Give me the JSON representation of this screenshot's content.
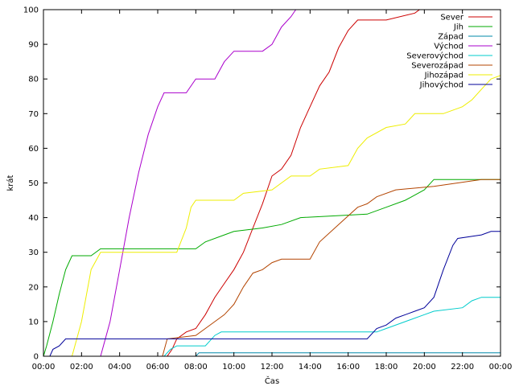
{
  "chart_data": {
    "type": "line",
    "xlabel": "Čas",
    "ylabel": "krát",
    "xlim": [
      "00:00",
      "24:00"
    ],
    "ylim": [
      0,
      100
    ],
    "x_tick_labels": [
      "00:00",
      "02:00",
      "04:00",
      "06:00",
      "08:00",
      "10:00",
      "12:00",
      "14:00",
      "16:00",
      "18:00",
      "20:00",
      "22:00",
      "00:00"
    ],
    "y_tick_labels": [
      "0",
      "10",
      "20",
      "30",
      "40",
      "50",
      "60",
      "70",
      "80",
      "90",
      "100"
    ],
    "legend_position": "top-right",
    "grid": false,
    "series": [
      {
        "name": "Sever",
        "color": "#cc0000",
        "points": [
          [
            "00:00",
            0
          ],
          [
            "06:30",
            0
          ],
          [
            "06:45",
            2
          ],
          [
            "07:00",
            5
          ],
          [
            "07:30",
            7
          ],
          [
            "08:00",
            8
          ],
          [
            "08:30",
            12
          ],
          [
            "09:00",
            17
          ],
          [
            "09:30",
            21
          ],
          [
            "10:00",
            25
          ],
          [
            "10:30",
            30
          ],
          [
            "11:00",
            37
          ],
          [
            "11:30",
            44
          ],
          [
            "12:00",
            52
          ],
          [
            "12:30",
            54
          ],
          [
            "13:00",
            58
          ],
          [
            "13:30",
            66
          ],
          [
            "14:00",
            72
          ],
          [
            "14:30",
            78
          ],
          [
            "15:00",
            82
          ],
          [
            "15:30",
            89
          ],
          [
            "16:00",
            94
          ],
          [
            "16:30",
            97
          ],
          [
            "18:00",
            97
          ],
          [
            "19:30",
            99
          ],
          [
            "19:45",
            100
          ]
        ]
      },
      {
        "name": "Jih",
        "color": "#00aa00",
        "points": [
          [
            "00:00",
            0
          ],
          [
            "00:10",
            3
          ],
          [
            "00:30",
            10
          ],
          [
            "00:50",
            18
          ],
          [
            "01:10",
            25
          ],
          [
            "01:30",
            29
          ],
          [
            "02:30",
            29
          ],
          [
            "03:00",
            31
          ],
          [
            "08:00",
            31
          ],
          [
            "08:30",
            33
          ],
          [
            "09:30",
            35
          ],
          [
            "10:00",
            36
          ],
          [
            "11:30",
            37
          ],
          [
            "12:30",
            38
          ],
          [
            "13:30",
            40
          ],
          [
            "17:00",
            41
          ],
          [
            "18:00",
            43
          ],
          [
            "19:00",
            45
          ],
          [
            "20:00",
            48
          ],
          [
            "20:30",
            51
          ],
          [
            "24:00",
            51
          ]
        ]
      },
      {
        "name": "Západ",
        "color": "#0088aa",
        "points": [
          [
            "00:00",
            0
          ],
          [
            "08:00",
            0
          ],
          [
            "08:10",
            1
          ],
          [
            "24:00",
            1
          ]
        ]
      },
      {
        "name": "Východ",
        "color": "#aa00cc",
        "points": [
          [
            "00:00",
            0
          ],
          [
            "03:00",
            0
          ],
          [
            "03:30",
            10
          ],
          [
            "04:00",
            25
          ],
          [
            "04:30",
            40
          ],
          [
            "05:00",
            53
          ],
          [
            "05:30",
            64
          ],
          [
            "06:00",
            72
          ],
          [
            "06:20",
            76
          ],
          [
            "07:30",
            76
          ],
          [
            "08:00",
            80
          ],
          [
            "09:00",
            80
          ],
          [
            "09:30",
            85
          ],
          [
            "10:00",
            88
          ],
          [
            "11:30",
            88
          ],
          [
            "12:00",
            90
          ],
          [
            "12:30",
            95
          ],
          [
            "13:00",
            98
          ],
          [
            "13:15",
            100
          ]
        ]
      },
      {
        "name": "Severovýchod",
        "color": "#00cccc",
        "points": [
          [
            "00:00",
            0
          ],
          [
            "06:20",
            0
          ],
          [
            "06:40",
            2
          ],
          [
            "07:00",
            3
          ],
          [
            "08:30",
            3
          ],
          [
            "09:00",
            6
          ],
          [
            "09:20",
            7
          ],
          [
            "17:30",
            7
          ],
          [
            "18:00",
            8
          ],
          [
            "19:00",
            10
          ],
          [
            "20:00",
            12
          ],
          [
            "20:30",
            13
          ],
          [
            "22:00",
            14
          ],
          [
            "22:30",
            16
          ],
          [
            "23:00",
            17
          ],
          [
            "24:00",
            17
          ]
        ]
      },
      {
        "name": "Severozápad",
        "color": "#b34400",
        "points": [
          [
            "00:00",
            0
          ],
          [
            "06:15",
            0
          ],
          [
            "06:30",
            5
          ],
          [
            "08:00",
            6
          ],
          [
            "08:30",
            8
          ],
          [
            "09:00",
            10
          ],
          [
            "09:30",
            12
          ],
          [
            "10:00",
            15
          ],
          [
            "10:30",
            20
          ],
          [
            "11:00",
            24
          ],
          [
            "11:30",
            25
          ],
          [
            "12:00",
            27
          ],
          [
            "12:30",
            28
          ],
          [
            "14:00",
            28
          ],
          [
            "14:30",
            33
          ],
          [
            "15:30",
            38
          ],
          [
            "16:30",
            43
          ],
          [
            "17:00",
            44
          ],
          [
            "17:30",
            46
          ],
          [
            "18:30",
            48
          ],
          [
            "20:30",
            49
          ],
          [
            "23:00",
            51
          ],
          [
            "24:00",
            51
          ]
        ]
      },
      {
        "name": "Jihozápad",
        "color": "#eeee00",
        "points": [
          [
            "00:00",
            0
          ],
          [
            "01:30",
            0
          ],
          [
            "02:00",
            10
          ],
          [
            "02:30",
            25
          ],
          [
            "03:00",
            30
          ],
          [
            "07:00",
            30
          ],
          [
            "07:30",
            37
          ],
          [
            "07:45",
            43
          ],
          [
            "08:00",
            45
          ],
          [
            "10:00",
            45
          ],
          [
            "10:30",
            47
          ],
          [
            "12:00",
            48
          ],
          [
            "12:30",
            50
          ],
          [
            "13:00",
            52
          ],
          [
            "14:00",
            52
          ],
          [
            "14:30",
            54
          ],
          [
            "16:00",
            55
          ],
          [
            "16:30",
            60
          ],
          [
            "17:00",
            63
          ],
          [
            "18:00",
            66
          ],
          [
            "19:00",
            67
          ],
          [
            "19:30",
            70
          ],
          [
            "21:00",
            70
          ],
          [
            "22:00",
            72
          ],
          [
            "22:30",
            74
          ],
          [
            "23:00",
            77
          ],
          [
            "23:30",
            80
          ],
          [
            "24:00",
            81
          ]
        ]
      },
      {
        "name": "Jihovýchod",
        "color": "#000099",
        "points": [
          [
            "00:00",
            0
          ],
          [
            "00:20",
            0
          ],
          [
            "00:30",
            2
          ],
          [
            "00:50",
            3
          ],
          [
            "01:10",
            5
          ],
          [
            "17:00",
            5
          ],
          [
            "17:30",
            8
          ],
          [
            "18:00",
            9
          ],
          [
            "18:30",
            11
          ],
          [
            "19:00",
            12
          ],
          [
            "19:30",
            13
          ],
          [
            "20:00",
            14
          ],
          [
            "20:30",
            17
          ],
          [
            "21:00",
            25
          ],
          [
            "21:30",
            32
          ],
          [
            "21:45",
            34
          ],
          [
            "23:00",
            35
          ],
          [
            "23:30",
            36
          ],
          [
            "24:00",
            36
          ]
        ]
      }
    ]
  }
}
